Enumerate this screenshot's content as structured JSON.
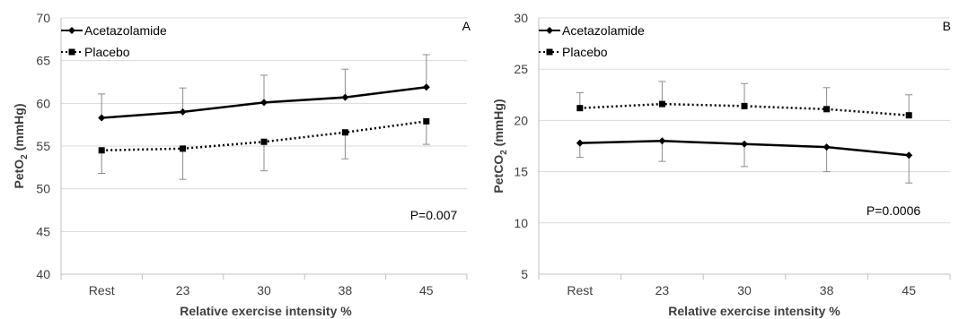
{
  "chart_data": [
    {
      "type": "line",
      "panel_label": "A",
      "xlabel": "Relative exercise intensity %",
      "ylabel_main": "PetO",
      "ylabel_sub": "2",
      "ylabel_unit": " (mmHg)",
      "categories": [
        "Rest",
        "23",
        "30",
        "38",
        "45"
      ],
      "ylim": [
        40,
        70
      ],
      "yticks": [
        40,
        45,
        50,
        55,
        60,
        65,
        70
      ],
      "grid": true,
      "legend_position": "top-left",
      "annotation": "P=0.007",
      "series": [
        {
          "name": "Acetazolamide",
          "style": "solid",
          "marker": "diamond",
          "values": [
            58.3,
            59.0,
            60.1,
            60.7,
            61.9
          ],
          "errors": [
            2.8,
            2.8,
            3.2,
            3.3,
            3.8
          ],
          "error_direction": "up"
        },
        {
          "name": "Placebo",
          "style": "dotted",
          "marker": "square",
          "values": [
            54.5,
            54.7,
            55.5,
            56.6,
            57.9
          ],
          "errors": [
            2.7,
            3.6,
            3.4,
            3.1,
            2.7
          ],
          "error_direction": "down"
        }
      ]
    },
    {
      "type": "line",
      "panel_label": "B",
      "xlabel": "Relative exercise intensity %",
      "ylabel_main": "PetCO",
      "ylabel_sub": "2",
      "ylabel_unit": " (mmHg)",
      "categories": [
        "Rest",
        "23",
        "30",
        "38",
        "45"
      ],
      "ylim": [
        5,
        30
      ],
      "yticks": [
        5,
        10,
        15,
        20,
        25,
        30
      ],
      "grid": true,
      "legend_position": "top-left",
      "annotation": "P=0.0006",
      "series": [
        {
          "name": "Acetazolamide",
          "style": "solid",
          "marker": "diamond",
          "values": [
            17.8,
            18.0,
            17.7,
            17.4,
            16.6
          ],
          "errors": [
            1.4,
            2.0,
            2.2,
            2.4,
            2.7
          ],
          "error_direction": "down"
        },
        {
          "name": "Placebo",
          "style": "dotted",
          "marker": "square",
          "values": [
            21.2,
            21.6,
            21.4,
            21.1,
            20.5
          ],
          "errors": [
            1.5,
            2.2,
            2.2,
            2.1,
            2.0
          ],
          "error_direction": "up"
        }
      ]
    }
  ]
}
